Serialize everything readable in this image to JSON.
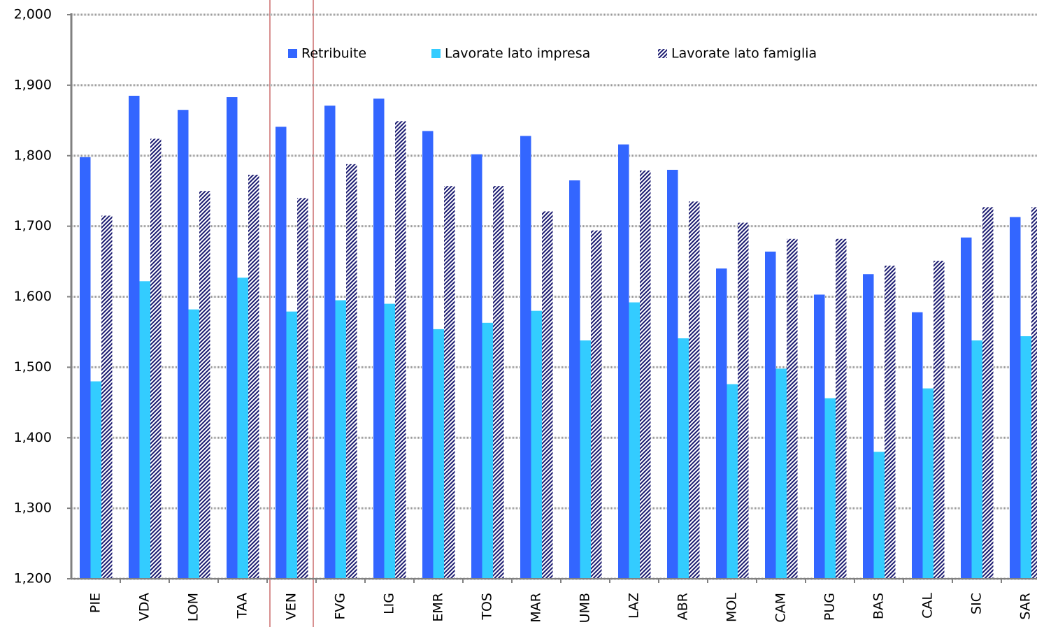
{
  "chart_data": {
    "type": "bar",
    "categories": [
      "PIE",
      "VDA",
      "LOM",
      "TAA",
      "VEN",
      "FVG",
      "LIG",
      "EMR",
      "TOS",
      "MAR",
      "UMB",
      "LAZ",
      "ABR",
      "MOL",
      "CAM",
      "PUG",
      "BAS",
      "CAL",
      "SIC",
      "SAR"
    ],
    "series": [
      {
        "name": "Retribuite",
        "color": "#3366ff",
        "values": [
          1798,
          1885,
          1865,
          1883,
          1841,
          1871,
          1881,
          1835,
          1802,
          1828,
          1765,
          1816,
          1780,
          1640,
          1664,
          1603,
          1632,
          1578,
          1684,
          1713
        ]
      },
      {
        "name": "Lavorate lato impresa",
        "color": "#33ccff",
        "values": [
          1480,
          1622,
          1582,
          1627,
          1579,
          1595,
          1590,
          1554,
          1563,
          1580,
          1538,
          1592,
          1541,
          1476,
          1498,
          1456,
          1380,
          1470,
          1538,
          1544
        ]
      },
      {
        "name": "Lavorate lato famiglia",
        "color": "#1a1a70",
        "hatched": true,
        "values": [
          1715,
          1824,
          1750,
          1773,
          1740,
          1788,
          1849,
          1757,
          1757,
          1721,
          1694,
          1779,
          1735,
          1705,
          1682,
          1682,
          1644,
          1651,
          1727,
          1727
        ]
      }
    ],
    "ylim": [
      1200,
      2000
    ],
    "yticks": [
      {
        "value": 1200,
        "label": "1,200"
      },
      {
        "value": 1300,
        "label": "1,300"
      },
      {
        "value": 1400,
        "label": "1,400"
      },
      {
        "value": 1500,
        "label": "1,500"
      },
      {
        "value": 1600,
        "label": "1,600"
      },
      {
        "value": 1700,
        "label": "1,700"
      },
      {
        "value": 1800,
        "label": "1,800"
      },
      {
        "value": 1900,
        "label": "1,900"
      },
      {
        "value": 2000,
        "label": "2,000"
      }
    ],
    "grid": true,
    "legend": "top"
  }
}
